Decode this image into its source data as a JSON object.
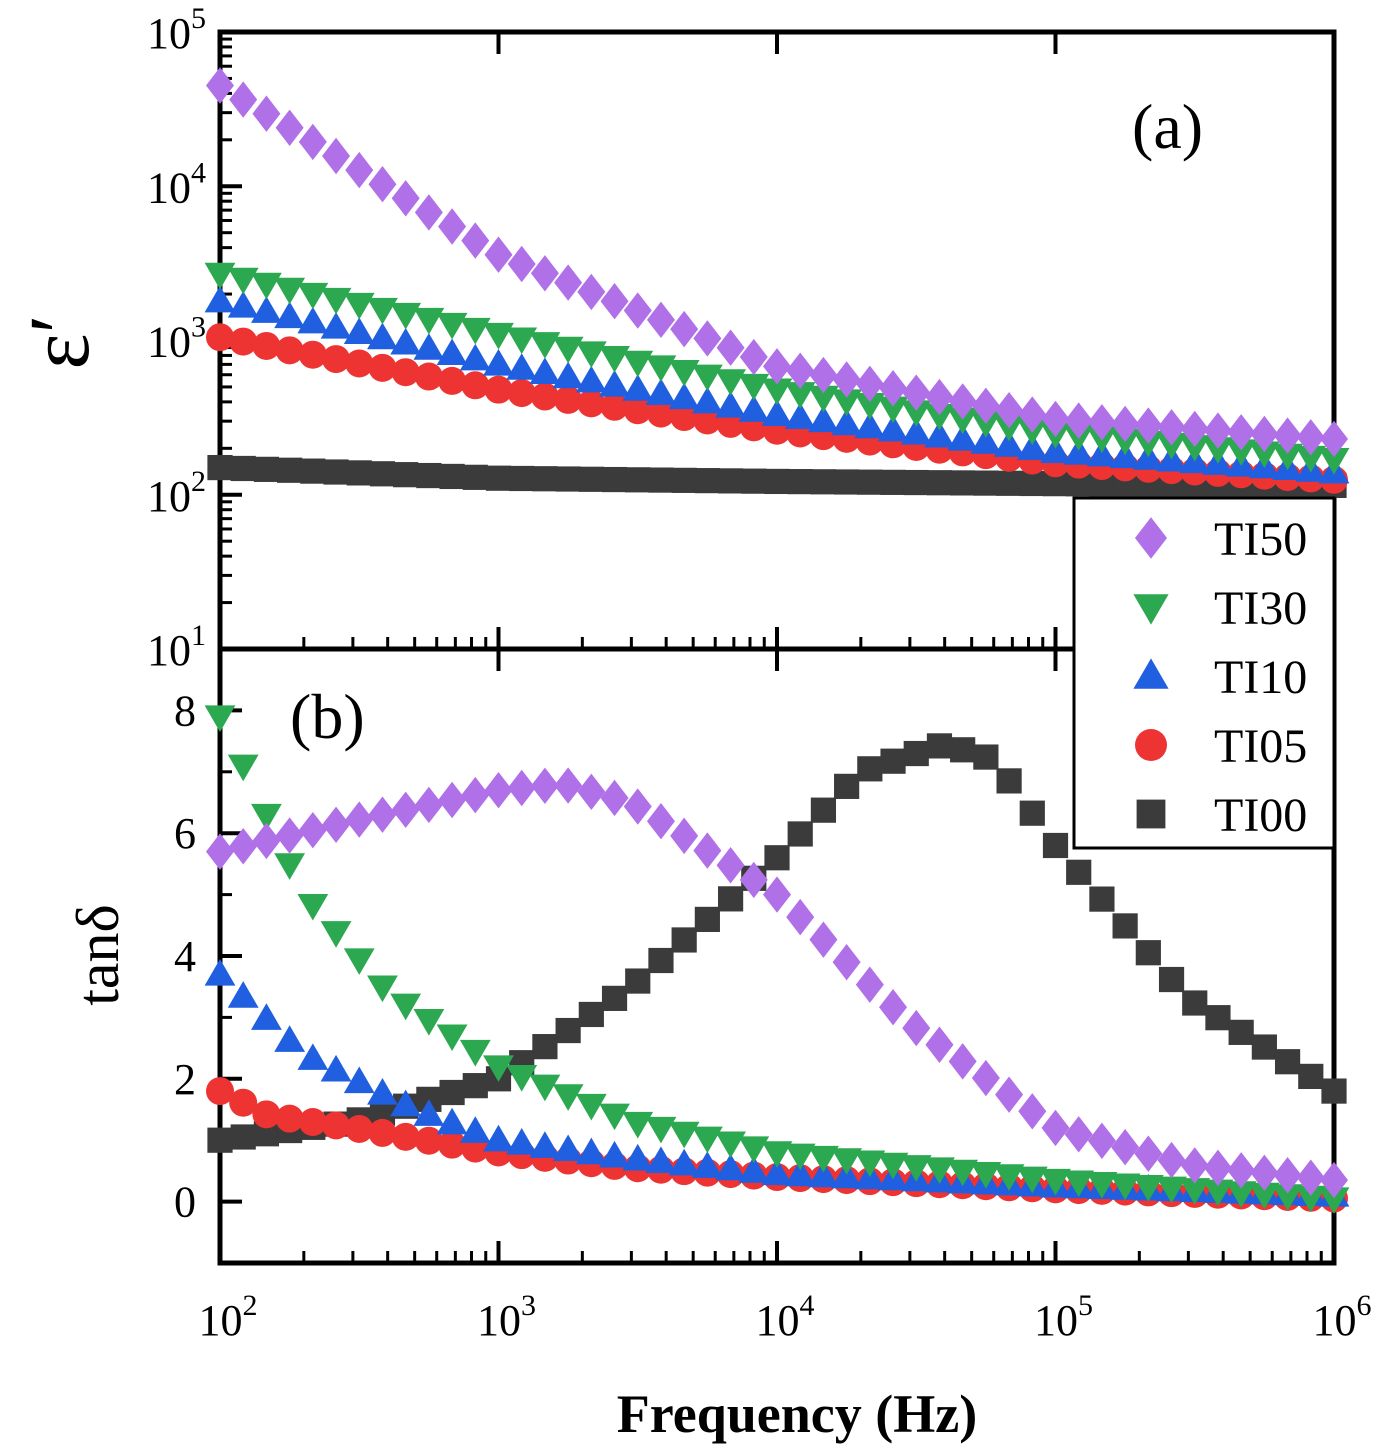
{
  "chart_data": [
    {
      "type": "scatter",
      "panel_label": "(a)",
      "ylabel": "ε′",
      "xscale": "log",
      "yscale": "log",
      "xlim": [
        100,
        1000000
      ],
      "ylim": [
        10,
        100000
      ],
      "xticks": [
        "10^2",
        "10^3",
        "10^4",
        "10^5",
        "10^6"
      ],
      "yticks": [
        "10^1",
        "10^2",
        "10^3",
        "10^4",
        "10^5"
      ],
      "legend_position": "right",
      "series": [
        {
          "name": "TI50",
          "marker": "diamond",
          "color": "#B070E8",
          "x": [
            100,
            1000,
            10000,
            100000,
            1000000
          ],
          "y": [
            45000,
            3600,
            680,
            310,
            230
          ]
        },
        {
          "name": "TI30",
          "marker": "triangle-down",
          "color": "#2CA850",
          "x": [
            100,
            1000,
            10000,
            100000,
            1000000
          ],
          "y": [
            2700,
            1100,
            480,
            250,
            170
          ]
        },
        {
          "name": "TI10",
          "marker": "triangle-up",
          "color": "#1F5FE0",
          "x": [
            100,
            1000,
            10000,
            100000,
            1000000
          ],
          "y": [
            1800,
            700,
            330,
            190,
            140
          ]
        },
        {
          "name": "TI05",
          "marker": "circle",
          "color": "#EE3333",
          "x": [
            100,
            1000,
            10000,
            100000,
            1000000
          ],
          "y": [
            1050,
            480,
            260,
            160,
            125
          ]
        },
        {
          "name": "TI00",
          "marker": "square",
          "color": "#3B3B3B",
          "x": [
            100,
            1000,
            10000,
            100000,
            1000000
          ],
          "y": [
            150,
            128,
            122,
            118,
            115
          ]
        }
      ]
    },
    {
      "type": "scatter",
      "panel_label": "(b)",
      "ylabel": "tanδ",
      "xlabel": "Frequency (Hz)",
      "xscale": "log",
      "xlim": [
        100,
        1000000
      ],
      "ylim": [
        -1,
        9
      ],
      "yticks": [
        "0",
        "2",
        "4",
        "6",
        "8"
      ],
      "xticks": [
        "10^2",
        "10^3",
        "10^4",
        "10^5",
        "10^6"
      ],
      "series": [
        {
          "name": "TI50",
          "marker": "diamond",
          "color": "#B070E8",
          "x": [
            100,
            300,
            1000,
            1700,
            3000,
            10000,
            30000,
            100000,
            300000,
            1000000
          ],
          "y": [
            5.7,
            6.2,
            6.7,
            6.8,
            6.5,
            5.0,
            2.9,
            1.2,
            0.6,
            0.35
          ]
        },
        {
          "name": "TI30",
          "marker": "triangle-down",
          "color": "#2CA850",
          "x": [
            100,
            200,
            400,
            1000,
            3000,
            10000,
            100000,
            1000000
          ],
          "y": [
            7.9,
            5.0,
            3.4,
            2.2,
            1.3,
            0.8,
            0.35,
            0.05
          ]
        },
        {
          "name": "TI10",
          "marker": "triangle-up",
          "color": "#1F5FE0",
          "x": [
            100,
            200,
            500,
            1000,
            3000,
            10000,
            100000,
            1000000
          ],
          "y": [
            3.7,
            2.4,
            1.5,
            1.0,
            0.7,
            0.45,
            0.25,
            0.1
          ]
        },
        {
          "name": "TI05",
          "marker": "circle",
          "color": "#EE3333",
          "x": [
            100,
            150,
            300,
            1000,
            3000,
            10000,
            100000,
            1000000
          ],
          "y": [
            1.8,
            1.4,
            1.2,
            0.8,
            0.55,
            0.4,
            0.2,
            0.05
          ]
        },
        {
          "name": "TI00",
          "marker": "square",
          "color": "#3B3B3B",
          "x": [
            100,
            300,
            1000,
            3000,
            10000,
            20000,
            40000,
            60000,
            100000,
            300000,
            1000000
          ],
          "y": [
            1.0,
            1.3,
            2.0,
            3.5,
            5.6,
            7.0,
            7.45,
            7.2,
            5.8,
            3.3,
            1.8
          ]
        }
      ]
    }
  ]
}
